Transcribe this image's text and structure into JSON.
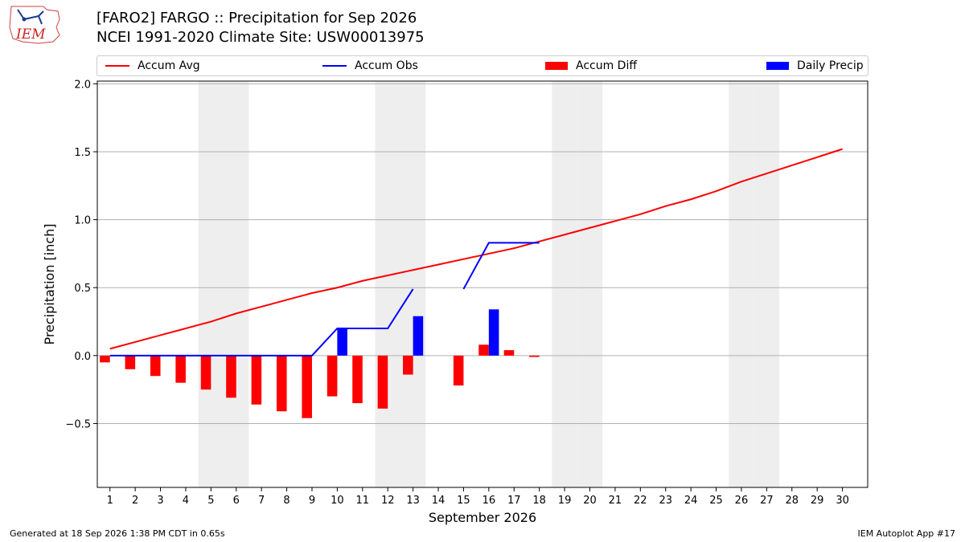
{
  "header": {
    "title_line1": "[FARO2] FARGO :: Precipitation for Sep 2026",
    "title_line2": "NCEI 1991-2020 Climate Site: USW00013975",
    "logo_text": "IEM"
  },
  "legend": {
    "items": [
      {
        "label": "Accum Avg",
        "kind": "line",
        "color": "#ff0000"
      },
      {
        "label": "Accum Obs",
        "kind": "line",
        "color": "#0000ff"
      },
      {
        "label": "Accum Diff",
        "kind": "bar",
        "color": "#ff0000"
      },
      {
        "label": "Daily Precip",
        "kind": "bar",
        "color": "#0000ff"
      }
    ]
  },
  "footer": {
    "left": "Generated at 18 Sep 2026 1:38 PM CDT in 0.65s",
    "right": "IEM Autoplot App #17"
  },
  "chart_data": {
    "type": "bar",
    "xlabel": "September 2026",
    "ylabel": "Precipitation [inch]",
    "ylim": [
      -0.97,
      2.02
    ],
    "xlim": [
      0.5,
      31
    ],
    "yticks": [
      -0.5,
      0.0,
      0.5,
      1.0,
      1.5,
      2.0
    ],
    "ytick_labels": [
      "−0.5",
      "0.0",
      "0.5",
      "1.0",
      "1.5",
      "2.0"
    ],
    "days": [
      1,
      2,
      3,
      4,
      5,
      6,
      7,
      8,
      9,
      10,
      11,
      12,
      13,
      14,
      15,
      16,
      17,
      18,
      19,
      20,
      21,
      22,
      23,
      24,
      25,
      26,
      27,
      28,
      29,
      30
    ],
    "weekend_days": [
      5,
      6,
      12,
      13,
      19,
      20,
      26,
      27
    ],
    "grid": "horizontal",
    "series": [
      {
        "name": "Accum Avg",
        "kind": "line",
        "color": "#ff0000",
        "x": [
          1,
          2,
          3,
          4,
          5,
          6,
          7,
          8,
          9,
          10,
          11,
          12,
          13,
          14,
          15,
          16,
          17,
          18,
          19,
          20,
          21,
          22,
          23,
          24,
          25,
          26,
          27,
          28,
          29,
          30
        ],
        "values": [
          0.05,
          0.1,
          0.15,
          0.2,
          0.25,
          0.31,
          0.36,
          0.41,
          0.46,
          0.5,
          0.55,
          0.59,
          0.63,
          0.67,
          0.71,
          0.75,
          0.79,
          0.84,
          0.89,
          0.94,
          0.99,
          1.04,
          1.1,
          1.15,
          1.21,
          1.28,
          1.34,
          1.4,
          1.46,
          1.52
        ]
      },
      {
        "name": "Accum Obs",
        "kind": "line",
        "color": "#0000ff",
        "segments": [
          {
            "x": [
              1,
              2,
              3,
              4,
              5,
              6,
              7,
              8,
              9,
              10,
              11,
              12,
              13
            ],
            "values": [
              0,
              0,
              0,
              0,
              0,
              0,
              0,
              0,
              0,
              0.2,
              0.2,
              0.2,
              0.49
            ]
          },
          {
            "x": [
              15,
              16,
              17,
              18
            ],
            "values": [
              0.49,
              0.83,
              0.83,
              0.83
            ]
          }
        ]
      },
      {
        "name": "Accum Diff",
        "kind": "bar",
        "color": "#ff0000",
        "x": [
          1,
          2,
          3,
          4,
          5,
          6,
          7,
          8,
          9,
          10,
          11,
          12,
          13,
          15,
          16,
          17,
          18
        ],
        "values": [
          -0.05,
          -0.1,
          -0.15,
          -0.2,
          -0.25,
          -0.31,
          -0.36,
          -0.41,
          -0.46,
          -0.3,
          -0.35,
          -0.39,
          -0.14,
          -0.22,
          0.08,
          0.04,
          -0.01
        ]
      },
      {
        "name": "Daily Precip",
        "kind": "bar",
        "color": "#0000ff",
        "x": [
          10,
          13,
          16
        ],
        "values": [
          0.2,
          0.29,
          0.34
        ]
      }
    ]
  }
}
